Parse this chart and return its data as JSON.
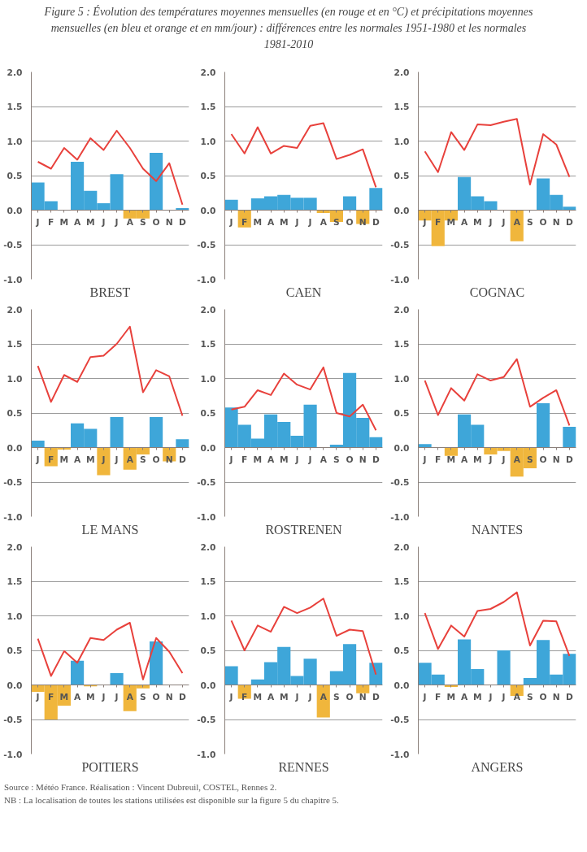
{
  "chart_data": [
    {
      "type": "bar",
      "title": "Figure 5 : Évolution des températures moyennes mensuelles (en rouge et en °C) et précipitations moyennes mensuelles (en bleu et orange et en mm/jour) : différences entre les normales 1951-1980 et les normales 1981-2010",
      "xlabel": "BREST",
      "categories": [
        "J",
        "F",
        "M",
        "A",
        "M",
        "J",
        "J",
        "A",
        "S",
        "O",
        "N",
        "D"
      ],
      "ylim": [
        -1,
        2
      ],
      "yticks": [
        {
          "value": -1,
          "label": "-1.0"
        },
        {
          "value": -0.5,
          "label": "-0.5"
        },
        {
          "value": 0,
          "label": "0.0"
        },
        {
          "value": 0.5,
          "label": "0.5"
        },
        {
          "value": 1,
          "label": "1.0"
        },
        {
          "value": 1.5,
          "label": "1.5"
        },
        {
          "value": 2,
          "label": "2.0"
        }
      ],
      "grid": "y",
      "series": [
        {
          "type": "bar",
          "values": [
            0.4,
            0.13,
            0,
            0.7,
            0.28,
            0.1,
            0.52,
            -0.12,
            -0.12,
            0.83,
            0,
            0.03
          ],
          "colors": [
            "#3ea6d9",
            "#3ea6d9",
            "#3ea6d9",
            "#3ea6d9",
            "#3ea6d9",
            "#3ea6d9",
            "#3ea6d9",
            "#f0b63c",
            "#f0b63c",
            "#3ea6d9",
            "#3ea6d9",
            "#3ea6d9"
          ]
        },
        {
          "type": "line",
          "color": "#e8413c",
          "values": [
            0.7,
            0.6,
            0.9,
            0.73,
            1.04,
            0.87,
            1.15,
            0.9,
            0.6,
            0.42,
            0.68,
            0.08
          ]
        }
      ]
    },
    {
      "type": "bar",
      "xlabel": "CAEN",
      "categories": [
        "J",
        "F",
        "M",
        "A",
        "M",
        "J",
        "J",
        "A",
        "S",
        "O",
        "N",
        "D"
      ],
      "ylim": [
        -1,
        2
      ],
      "yticks": [
        {
          "value": -1,
          "label": "-1.0"
        },
        {
          "value": -0.5,
          "label": "-0.5"
        },
        {
          "value": 0,
          "label": "0.0"
        },
        {
          "value": 0.5,
          "label": "0.5"
        },
        {
          "value": 1,
          "label": "1.0"
        },
        {
          "value": 1.5,
          "label": "1.5"
        },
        {
          "value": 2,
          "label": "2.0"
        }
      ],
      "grid": "y",
      "series": [
        {
          "type": "bar",
          "values": [
            0.15,
            -0.25,
            0.17,
            0.2,
            0.22,
            0.18,
            0.18,
            -0.04,
            -0.17,
            0.2,
            -0.2,
            0.32
          ],
          "colors": [
            "#3ea6d9",
            "#f0b63c",
            "#3ea6d9",
            "#3ea6d9",
            "#3ea6d9",
            "#3ea6d9",
            "#3ea6d9",
            "#f0b63c",
            "#f0b63c",
            "#3ea6d9",
            "#f0b63c",
            "#3ea6d9"
          ]
        },
        {
          "type": "line",
          "color": "#e8413c",
          "values": [
            1.1,
            0.82,
            1.2,
            0.82,
            0.93,
            0.9,
            1.22,
            1.26,
            0.74,
            0.8,
            0.88,
            0.33
          ]
        }
      ]
    },
    {
      "type": "bar",
      "xlabel": "COGNAC",
      "categories": [
        "J",
        "F",
        "M",
        "A",
        "M",
        "J",
        "J",
        "A",
        "S",
        "O",
        "N",
        "D"
      ],
      "ylim": [
        -1,
        2
      ],
      "yticks": [
        {
          "value": -1,
          "label": "-1.0"
        },
        {
          "value": -0.5,
          "label": "-0.5"
        },
        {
          "value": 0,
          "label": "0.0"
        },
        {
          "value": 0.5,
          "label": "0.5"
        },
        {
          "value": 1,
          "label": "1.0"
        },
        {
          "value": 1.5,
          "label": "1.5"
        },
        {
          "value": 2,
          "label": "2.0"
        }
      ],
      "grid": "y",
      "series": [
        {
          "type": "bar",
          "values": [
            -0.15,
            -0.52,
            -0.15,
            0.48,
            0.2,
            0.13,
            0,
            -0.45,
            0,
            0.46,
            0.22,
            0.05
          ],
          "colors": [
            "#f0b63c",
            "#f0b63c",
            "#f0b63c",
            "#3ea6d9",
            "#3ea6d9",
            "#3ea6d9",
            "#3ea6d9",
            "#f0b63c",
            "#3ea6d9",
            "#3ea6d9",
            "#3ea6d9",
            "#3ea6d9"
          ]
        },
        {
          "type": "line",
          "color": "#e8413c",
          "values": [
            0.85,
            0.55,
            1.13,
            0.87,
            1.24,
            1.23,
            1.28,
            1.32,
            0.37,
            1.1,
            0.95,
            0.48
          ]
        }
      ]
    },
    {
      "type": "bar",
      "xlabel": "LE MANS",
      "categories": [
        "J",
        "F",
        "M",
        "A",
        "M",
        "J",
        "J",
        "A",
        "S",
        "O",
        "N",
        "D"
      ],
      "ylim": [
        -1,
        2
      ],
      "yticks": [
        {
          "value": -1,
          "label": "-1.0"
        },
        {
          "value": -0.5,
          "label": "-0.5"
        },
        {
          "value": 0,
          "label": "0.0"
        },
        {
          "value": 0.5,
          "label": "0.5"
        },
        {
          "value": 1,
          "label": "1.0"
        },
        {
          "value": 1.5,
          "label": "1.5"
        },
        {
          "value": 2,
          "label": "2.0"
        }
      ],
      "grid": "y",
      "series": [
        {
          "type": "bar",
          "values": [
            0.1,
            -0.27,
            -0.03,
            0.35,
            0.27,
            -0.4,
            0.44,
            -0.32,
            -0.1,
            0.44,
            -0.2,
            0.12
          ],
          "colors": [
            "#3ea6d9",
            "#f0b63c",
            "#f0b63c",
            "#3ea6d9",
            "#3ea6d9",
            "#f0b63c",
            "#3ea6d9",
            "#f0b63c",
            "#f0b63c",
            "#3ea6d9",
            "#f0b63c",
            "#3ea6d9"
          ]
        },
        {
          "type": "line",
          "color": "#e8413c",
          "values": [
            1.18,
            0.66,
            1.05,
            0.95,
            1.31,
            1.33,
            1.5,
            1.75,
            0.8,
            1.12,
            1.03,
            0.46
          ]
        }
      ]
    },
    {
      "type": "bar",
      "xlabel": "ROSTRENEN",
      "categories": [
        "J",
        "F",
        "M",
        "A",
        "M",
        "J",
        "J",
        "A",
        "S",
        "O",
        "N",
        "D"
      ],
      "ylim": [
        -1,
        2
      ],
      "yticks": [
        {
          "value": -1,
          "label": "-1.0"
        },
        {
          "value": -0.5,
          "label": "-0.5"
        },
        {
          "value": 0,
          "label": "0.0"
        },
        {
          "value": 0.5,
          "label": "0.5"
        },
        {
          "value": 1,
          "label": "1.0"
        },
        {
          "value": 1.5,
          "label": "1.5"
        },
        {
          "value": 2,
          "label": "2.0"
        }
      ],
      "grid": "y",
      "series": [
        {
          "type": "bar",
          "values": [
            0.58,
            0.33,
            0.13,
            0.48,
            0.37,
            0.17,
            0.62,
            0,
            0.04,
            1.08,
            0.43,
            0.15
          ],
          "colors": [
            "#3ea6d9",
            "#3ea6d9",
            "#3ea6d9",
            "#3ea6d9",
            "#3ea6d9",
            "#3ea6d9",
            "#3ea6d9",
            "#3ea6d9",
            "#3ea6d9",
            "#3ea6d9",
            "#3ea6d9",
            "#3ea6d9"
          ]
        },
        {
          "type": "line",
          "color": "#e8413c",
          "values": [
            0.55,
            0.59,
            0.83,
            0.76,
            1.07,
            0.91,
            0.84,
            1.16,
            0.5,
            0.45,
            0.62,
            0.25
          ]
        }
      ]
    },
    {
      "type": "bar",
      "xlabel": "NANTES",
      "categories": [
        "J",
        "F",
        "M",
        "A",
        "M",
        "J",
        "J",
        "A",
        "S",
        "O",
        "N",
        "D"
      ],
      "ylim": [
        -1,
        2
      ],
      "yticks": [
        {
          "value": -1,
          "label": "-1.0"
        },
        {
          "value": -0.5,
          "label": "-0.5"
        },
        {
          "value": 0,
          "label": "0.0"
        },
        {
          "value": 0.5,
          "label": "0.5"
        },
        {
          "value": 1,
          "label": "1.0"
        },
        {
          "value": 1.5,
          "label": "1.5"
        },
        {
          "value": 2,
          "label": "2.0"
        }
      ],
      "grid": "y",
      "series": [
        {
          "type": "bar",
          "values": [
            0.05,
            0,
            -0.12,
            0.48,
            0.33,
            -0.1,
            -0.05,
            -0.42,
            -0.3,
            0.64,
            0,
            0.3
          ],
          "colors": [
            "#3ea6d9",
            "#3ea6d9",
            "#f0b63c",
            "#3ea6d9",
            "#3ea6d9",
            "#f0b63c",
            "#f0b63c",
            "#f0b63c",
            "#f0b63c",
            "#3ea6d9",
            "#3ea6d9",
            "#3ea6d9"
          ]
        },
        {
          "type": "line",
          "color": "#e8413c",
          "values": [
            0.97,
            0.47,
            0.86,
            0.68,
            1.06,
            0.97,
            1.02,
            1.28,
            0.59,
            0.72,
            0.83,
            0.32
          ]
        }
      ]
    },
    {
      "type": "bar",
      "xlabel": "POITIERS",
      "categories": [
        "J",
        "F",
        "M",
        "A",
        "M",
        "J",
        "J",
        "A",
        "S",
        "O",
        "N",
        "D"
      ],
      "ylim": [
        -1,
        2
      ],
      "yticks": [
        {
          "value": -1,
          "label": "-1.0"
        },
        {
          "value": -0.5,
          "label": "-0.5"
        },
        {
          "value": 0,
          "label": "0.0"
        },
        {
          "value": 0.5,
          "label": "0.5"
        },
        {
          "value": 1,
          "label": "1.0"
        },
        {
          "value": 1.5,
          "label": "1.5"
        },
        {
          "value": 2,
          "label": "2.0"
        }
      ],
      "grid": "y",
      "series": [
        {
          "type": "bar",
          "values": [
            -0.1,
            -0.5,
            -0.3,
            0.35,
            -0.02,
            0,
            0.17,
            -0.38,
            -0.05,
            0.63,
            0,
            0
          ],
          "colors": [
            "#f0b63c",
            "#f0b63c",
            "#f0b63c",
            "#3ea6d9",
            "#f0b63c",
            "#3ea6d9",
            "#3ea6d9",
            "#f0b63c",
            "#f0b63c",
            "#3ea6d9",
            "#3ea6d9",
            "#3ea6d9"
          ]
        },
        {
          "type": "line",
          "color": "#e8413c",
          "values": [
            0.67,
            0.13,
            0.49,
            0.32,
            0.68,
            0.65,
            0.8,
            0.9,
            0.08,
            0.68,
            0.48,
            0.17
          ]
        }
      ]
    },
    {
      "type": "bar",
      "xlabel": "RENNES",
      "categories": [
        "J",
        "F",
        "M",
        "A",
        "M",
        "J",
        "J",
        "A",
        "S",
        "O",
        "N",
        "D"
      ],
      "ylim": [
        -1,
        2
      ],
      "yticks": [
        {
          "value": -1,
          "label": "-1.0"
        },
        {
          "value": -0.5,
          "label": "-0.5"
        },
        {
          "value": 0,
          "label": "0.0"
        },
        {
          "value": 0.5,
          "label": "0.5"
        },
        {
          "value": 1,
          "label": "1.0"
        },
        {
          "value": 1.5,
          "label": "1.5"
        },
        {
          "value": 2,
          "label": "2.0"
        }
      ],
      "grid": "y",
      "series": [
        {
          "type": "bar",
          "values": [
            0.27,
            -0.2,
            0.08,
            0.33,
            0.55,
            0.13,
            0.38,
            -0.47,
            0.2,
            0.59,
            -0.12,
            0.32
          ],
          "colors": [
            "#3ea6d9",
            "#f0b63c",
            "#3ea6d9",
            "#3ea6d9",
            "#3ea6d9",
            "#3ea6d9",
            "#3ea6d9",
            "#f0b63c",
            "#3ea6d9",
            "#3ea6d9",
            "#f0b63c",
            "#3ea6d9"
          ]
        },
        {
          "type": "line",
          "color": "#e8413c",
          "values": [
            0.93,
            0.5,
            0.86,
            0.77,
            1.13,
            1.04,
            1.12,
            1.25,
            0.71,
            0.8,
            0.78,
            0.15
          ]
        }
      ]
    },
    {
      "type": "bar",
      "xlabel": "ANGERS",
      "categories": [
        "J",
        "F",
        "M",
        "A",
        "M",
        "J",
        "J",
        "A",
        "S",
        "O",
        "N",
        "D"
      ],
      "ylim": [
        -1,
        2
      ],
      "yticks": [
        {
          "value": -1,
          "label": "-1.0"
        },
        {
          "value": -0.5,
          "label": "-0.5"
        },
        {
          "value": 0,
          "label": "0.0"
        },
        {
          "value": 0.5,
          "label": "0.5"
        },
        {
          "value": 1,
          "label": "1.0"
        },
        {
          "value": 1.5,
          "label": "1.5"
        },
        {
          "value": 2,
          "label": "2.0"
        }
      ],
      "grid": "y",
      "annotations": [
        "Source : Météo France. Réalisation : Vincent Dubreuil, COSTEL, Rennes 2.",
        "NB : La localisation de toutes les stations utilisées est disponible sur la figure 5 du chapitre 5."
      ],
      "series": [
        {
          "type": "bar",
          "values": [
            0.32,
            0.15,
            -0.03,
            0.66,
            0.23,
            0,
            0.5,
            -0.16,
            0.1,
            0.65,
            0.15,
            0.45
          ],
          "colors": [
            "#3ea6d9",
            "#3ea6d9",
            "#f0b63c",
            "#3ea6d9",
            "#3ea6d9",
            "#3ea6d9",
            "#3ea6d9",
            "#f0b63c",
            "#3ea6d9",
            "#3ea6d9",
            "#3ea6d9",
            "#3ea6d9"
          ]
        },
        {
          "type": "line",
          "color": "#e8413c",
          "values": [
            1.04,
            0.52,
            0.86,
            0.7,
            1.07,
            1.1,
            1.2,
            1.34,
            0.57,
            0.93,
            0.92,
            0.42
          ]
        }
      ]
    }
  ]
}
